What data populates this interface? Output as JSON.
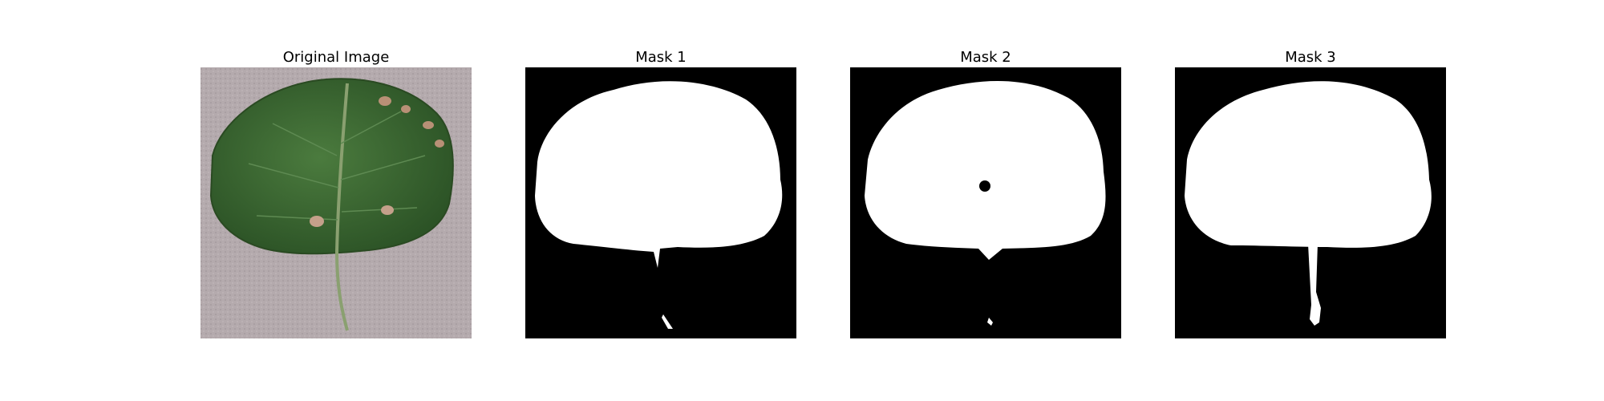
{
  "panels": [
    {
      "title": "Original Image"
    },
    {
      "title": "Mask 1"
    },
    {
      "title": "Mask 2"
    },
    {
      "title": "Mask 3"
    }
  ],
  "colors": {
    "background": "#ffffff",
    "mask_background": "#000000",
    "mask_foreground": "#ffffff",
    "leaf_green": "#3f6b36",
    "paper_gray": "#b4aaad",
    "lesion_tan": "#b89076"
  }
}
